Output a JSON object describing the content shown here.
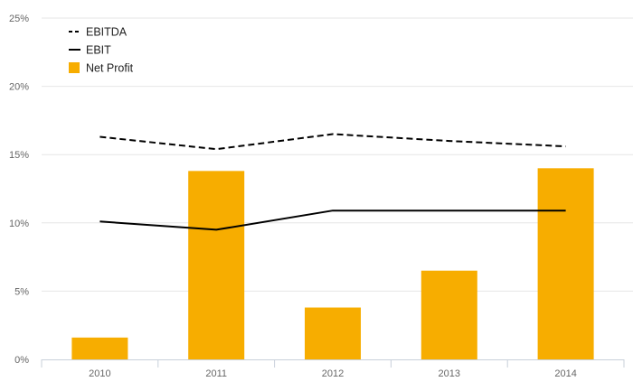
{
  "chart_data": {
    "type": "bar",
    "categories": [
      "2010",
      "2011",
      "2012",
      "2013",
      "2014"
    ],
    "ylim": [
      0,
      25
    ],
    "yticks": [
      0,
      5,
      10,
      15,
      20,
      25
    ],
    "ytick_labels": [
      "0%",
      "5%",
      "10%",
      "15%",
      "20%",
      "25%"
    ],
    "grid": true,
    "legend_position": "top-left",
    "bar_series": {
      "name": "Net Profit",
      "values": [
        1.6,
        13.8,
        3.8,
        6.5,
        14.0
      ],
      "color": "#f7ad00"
    },
    "line_series": [
      {
        "name": "EBITDA",
        "values": [
          16.3,
          15.4,
          16.5,
          16.0,
          15.6
        ],
        "color": "#000000",
        "dashed": true
      },
      {
        "name": "EBIT",
        "values": [
          10.1,
          9.5,
          10.9,
          10.9,
          10.9
        ],
        "color": "#000000",
        "dashed": false
      }
    ]
  }
}
